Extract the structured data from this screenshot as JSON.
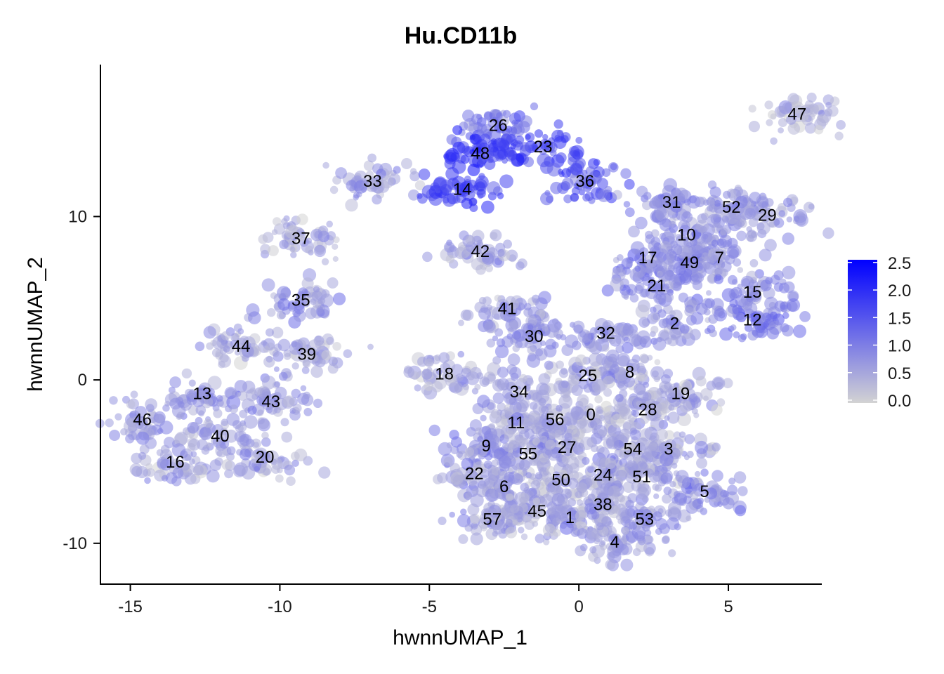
{
  "chart_data": {
    "type": "scatter",
    "title": "Hu.CD11b",
    "xlabel": "hwnnUMAP_1",
    "ylabel": "hwnnUMAP_2",
    "xlim": [
      -16,
      8.1
    ],
    "ylim": [
      -12.5,
      19.3
    ],
    "x_ticks": [
      -15,
      -10,
      -5,
      0,
      5
    ],
    "y_ticks": [
      -10,
      0,
      10
    ],
    "legend": {
      "position": "right",
      "colors": {
        "low": "#d3d3d3",
        "high": "#0000ff"
      },
      "range": [
        0,
        2.6
      ],
      "ticks": [
        "0.0",
        "0.5",
        "1.0",
        "1.5",
        "2.0",
        "2.5"
      ]
    },
    "clusters": [
      {
        "id": "47",
        "x": 7.3,
        "y": 16.2,
        "level": 0.4
      },
      {
        "id": "26",
        "x": -2.7,
        "y": 15.5,
        "level": 1.2
      },
      {
        "id": "23",
        "x": -1.2,
        "y": 14.2,
        "level": 1.7
      },
      {
        "id": "48",
        "x": -3.3,
        "y": 13.8,
        "level": 1.9
      },
      {
        "id": "33",
        "x": -6.9,
        "y": 12.1,
        "level": 0.6
      },
      {
        "id": "36",
        "x": 0.2,
        "y": 12.1,
        "level": 1.5
      },
      {
        "id": "14",
        "x": -3.9,
        "y": 11.6,
        "level": 1.8
      },
      {
        "id": "31",
        "x": 3.1,
        "y": 10.8,
        "level": 0.9
      },
      {
        "id": "52",
        "x": 5.1,
        "y": 10.5,
        "level": 0.7
      },
      {
        "id": "29",
        "x": 6.3,
        "y": 10.0,
        "level": 0.8
      },
      {
        "id": "10",
        "x": 3.6,
        "y": 8.8,
        "level": 0.8
      },
      {
        "id": "37",
        "x": -9.3,
        "y": 8.6,
        "level": 0.5
      },
      {
        "id": "42",
        "x": -3.3,
        "y": 7.8,
        "level": 0.6
      },
      {
        "id": "17",
        "x": 2.3,
        "y": 7.4,
        "level": 1.0
      },
      {
        "id": "7",
        "x": 4.7,
        "y": 7.4,
        "level": 0.8
      },
      {
        "id": "49",
        "x": 3.7,
        "y": 7.1,
        "level": 0.8
      },
      {
        "id": "21",
        "x": 2.6,
        "y": 5.7,
        "level": 0.9
      },
      {
        "id": "15",
        "x": 5.8,
        "y": 5.3,
        "level": 0.9
      },
      {
        "id": "35",
        "x": -9.3,
        "y": 4.8,
        "level": 0.7
      },
      {
        "id": "41",
        "x": -2.4,
        "y": 4.3,
        "level": 0.7
      },
      {
        "id": "12",
        "x": 5.8,
        "y": 3.6,
        "level": 1.2
      },
      {
        "id": "2",
        "x": 3.2,
        "y": 3.4,
        "level": 0.7
      },
      {
        "id": "32",
        "x": 0.9,
        "y": 2.8,
        "level": 0.8
      },
      {
        "id": "30",
        "x": -1.5,
        "y": 2.6,
        "level": 0.9
      },
      {
        "id": "44",
        "x": -11.3,
        "y": 2.0,
        "level": 0.6
      },
      {
        "id": "39",
        "x": -9.1,
        "y": 1.5,
        "level": 0.5
      },
      {
        "id": "18",
        "x": -4.5,
        "y": 0.3,
        "level": 0.6
      },
      {
        "id": "8",
        "x": 1.7,
        "y": 0.4,
        "level": 0.6
      },
      {
        "id": "25",
        "x": 0.3,
        "y": 0.2,
        "level": 0.6
      },
      {
        "id": "34",
        "x": -2.0,
        "y": -0.8,
        "level": 0.6
      },
      {
        "id": "13",
        "x": -12.6,
        "y": -0.9,
        "level": 0.8
      },
      {
        "id": "19",
        "x": 3.4,
        "y": -0.9,
        "level": 0.6
      },
      {
        "id": "43",
        "x": -10.3,
        "y": -1.4,
        "level": 0.7
      },
      {
        "id": "28",
        "x": 2.3,
        "y": -1.9,
        "level": 0.6
      },
      {
        "id": "0",
        "x": 0.4,
        "y": -2.2,
        "level": 0.5
      },
      {
        "id": "46",
        "x": -14.6,
        "y": -2.5,
        "level": 0.7
      },
      {
        "id": "56",
        "x": -0.8,
        "y": -2.5,
        "level": 0.5
      },
      {
        "id": "11",
        "x": -2.1,
        "y": -2.7,
        "level": 0.6
      },
      {
        "id": "40",
        "x": -12.0,
        "y": -3.5,
        "level": 0.7
      },
      {
        "id": "9",
        "x": -3.1,
        "y": -4.1,
        "level": 0.8
      },
      {
        "id": "27",
        "x": -0.4,
        "y": -4.2,
        "level": 0.6
      },
      {
        "id": "54",
        "x": 1.8,
        "y": -4.3,
        "level": 0.6
      },
      {
        "id": "3",
        "x": 3.0,
        "y": -4.3,
        "level": 0.6
      },
      {
        "id": "55",
        "x": -1.7,
        "y": -4.6,
        "level": 0.6
      },
      {
        "id": "20",
        "x": -10.5,
        "y": -4.8,
        "level": 0.6
      },
      {
        "id": "16",
        "x": -13.5,
        "y": -5.1,
        "level": 0.6
      },
      {
        "id": "22",
        "x": -3.5,
        "y": -5.8,
        "level": 0.7
      },
      {
        "id": "24",
        "x": 0.8,
        "y": -5.9,
        "level": 0.5
      },
      {
        "id": "51",
        "x": 2.1,
        "y": -6.0,
        "level": 0.6
      },
      {
        "id": "50",
        "x": -0.6,
        "y": -6.2,
        "level": 0.5
      },
      {
        "id": "6",
        "x": -2.5,
        "y": -6.6,
        "level": 0.6
      },
      {
        "id": "5",
        "x": 4.2,
        "y": -6.9,
        "level": 0.9
      },
      {
        "id": "38",
        "x": 0.8,
        "y": -7.7,
        "level": 0.6
      },
      {
        "id": "45",
        "x": -1.4,
        "y": -8.1,
        "level": 0.6
      },
      {
        "id": "1",
        "x": -0.3,
        "y": -8.5,
        "level": 0.6
      },
      {
        "id": "57",
        "x": -2.9,
        "y": -8.6,
        "level": 0.6
      },
      {
        "id": "53",
        "x": 2.2,
        "y": -8.6,
        "level": 0.7
      },
      {
        "id": "4",
        "x": 1.2,
        "y": -10.0,
        "level": 0.7
      }
    ]
  }
}
